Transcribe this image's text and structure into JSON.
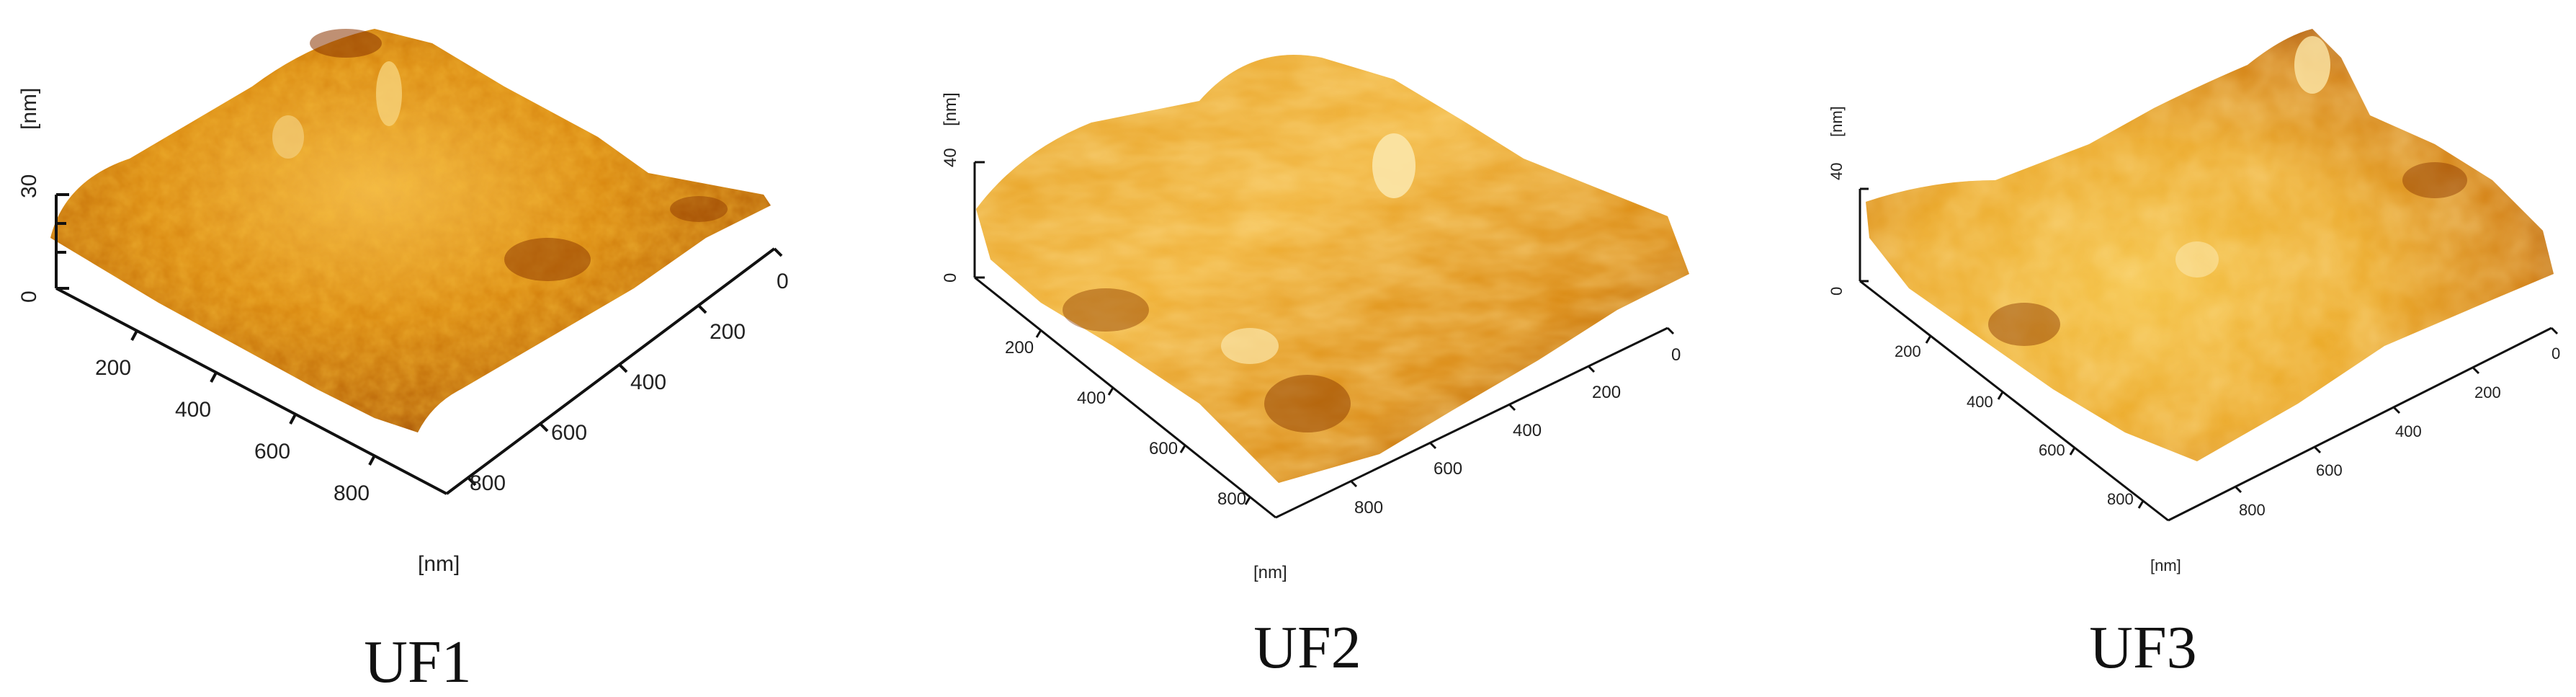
{
  "panels": [
    {
      "caption": "UF1",
      "axis_unit": "[nm]",
      "z_unit": "[nm]",
      "z_ticks": [
        "30",
        "0"
      ],
      "x_ticks": [
        "200",
        "400",
        "600",
        "800"
      ],
      "y_ticks": [
        "0",
        "200",
        "400",
        "600",
        "800"
      ]
    },
    {
      "caption": "UF2",
      "axis_unit": "[nm]",
      "z_unit": "[nm]",
      "z_ticks": [
        "40",
        "0"
      ],
      "x_ticks": [
        "200",
        "400",
        "600",
        "800"
      ],
      "y_ticks": [
        "0",
        "200",
        "400",
        "600",
        "800"
      ]
    },
    {
      "caption": "UF3",
      "axis_unit": "[nm]",
      "z_unit": "[nm]",
      "z_ticks": [
        "40",
        "0"
      ],
      "x_ticks": [
        "200",
        "400",
        "600",
        "800"
      ],
      "y_ticks": [
        "0",
        "200",
        "400",
        "600",
        "800"
      ]
    }
  ],
  "colors": {
    "surface_dark": "#7a2c00",
    "surface_mid": "#d27a00",
    "surface_light": "#f2bf45",
    "surface_highlight": "#fbe6a8",
    "axis": "#111111"
  }
}
